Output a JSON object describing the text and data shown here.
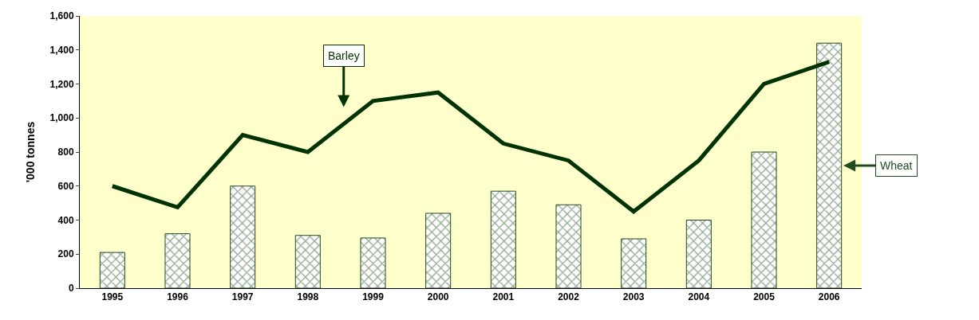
{
  "chart_data": {
    "type": "bar",
    "ylabel": "'000 tonnes",
    "categories": [
      "1995",
      "1996",
      "1997",
      "1998",
      "1999",
      "2000",
      "2001",
      "2002",
      "2003",
      "2004",
      "2005",
      "2006"
    ],
    "series": [
      {
        "name": "Wheat",
        "color": "#1f4d1f",
        "values": [
          210,
          320,
          600,
          310,
          295,
          440,
          570,
          490,
          290,
          400,
          800,
          1440
        ]
      },
      {
        "name": "Barley",
        "type": "line",
        "color": "#003300",
        "values": [
          600,
          475,
          900,
          800,
          1100,
          1150,
          850,
          750,
          450,
          750,
          1200,
          1330
        ]
      }
    ],
    "ylim": [
      0,
      1600
    ],
    "yticks": [
      0,
      {
        "value": 200,
        "label": "200"
      },
      {
        "value": 400,
        "label": "400"
      },
      {
        "value": 600,
        "label": "600"
      },
      {
        "value": 800,
        "label": "800"
      },
      {
        "value": 1000,
        "label": "1,000"
      },
      {
        "value": 1200,
        "label": "1,200"
      },
      {
        "value": 1400,
        "label": "1,400"
      },
      {
        "value": 1600,
        "label": "1,600"
      }
    ],
    "grid": false,
    "legend": false,
    "marker": "none",
    "line_style": "solid"
  }
}
